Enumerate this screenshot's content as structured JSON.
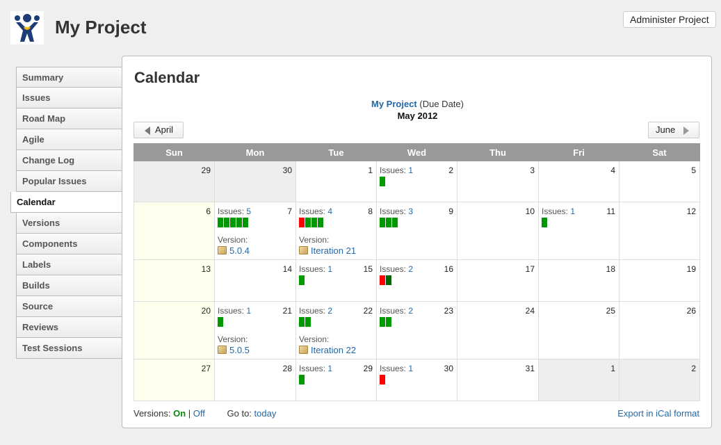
{
  "header": {
    "title": "My Project",
    "logo_icon": "atlassian-logo",
    "admin_button": "Administer Project"
  },
  "sidebar": {
    "items": [
      {
        "label": "Summary"
      },
      {
        "label": "Issues"
      },
      {
        "label": "Road Map"
      },
      {
        "label": "Agile"
      },
      {
        "label": "Change Log"
      },
      {
        "label": "Popular Issues"
      },
      {
        "label": "Calendar",
        "active": true
      },
      {
        "label": "Versions"
      },
      {
        "label": "Components"
      },
      {
        "label": "Labels"
      },
      {
        "label": "Builds"
      },
      {
        "label": "Source"
      },
      {
        "label": "Reviews"
      },
      {
        "label": "Test Sessions"
      }
    ]
  },
  "calendar": {
    "title": "Calendar",
    "project_link": "My Project",
    "field": "(Due Date)",
    "month": "May 2012",
    "prev": "April",
    "next": "June",
    "weekdays": [
      "Sun",
      "Mon",
      "Tue",
      "Wed",
      "Thu",
      "Fri",
      "Sat"
    ],
    "issues_label": "Issues: ",
    "version_label": "Version:",
    "colors": {
      "resolved": "#009900",
      "overdue": "#ff0000",
      "dark_green": "#006400"
    },
    "weeks": [
      [
        {
          "day": "29",
          "other": true
        },
        {
          "day": "30",
          "other": true
        },
        {
          "day": "1"
        },
        {
          "day": "2",
          "issues": "1",
          "bars": [
            "g"
          ]
        },
        {
          "day": "3"
        },
        {
          "day": "4"
        },
        {
          "day": "5"
        }
      ],
      [
        {
          "day": "6"
        },
        {
          "day": "7",
          "issues": "5",
          "bars": [
            "g",
            "g",
            "g",
            "g",
            "g"
          ],
          "version": "5.0.4"
        },
        {
          "day": "8",
          "issues": "4",
          "bars": [
            "r",
            "g",
            "g",
            "g"
          ],
          "version": "Iteration 21"
        },
        {
          "day": "9",
          "issues": "3",
          "bars": [
            "g",
            "g",
            "g"
          ]
        },
        {
          "day": "10"
        },
        {
          "day": "11",
          "issues": "1",
          "bars": [
            "g"
          ]
        },
        {
          "day": "12"
        }
      ],
      [
        {
          "day": "13"
        },
        {
          "day": "14"
        },
        {
          "day": "15",
          "issues": "1",
          "bars": [
            "g"
          ]
        },
        {
          "day": "16",
          "issues": "2",
          "bars": [
            "r",
            "d"
          ]
        },
        {
          "day": "17"
        },
        {
          "day": "18"
        },
        {
          "day": "19"
        }
      ],
      [
        {
          "day": "20"
        },
        {
          "day": "21",
          "issues": "1",
          "bars": [
            "g"
          ],
          "version": "5.0.5"
        },
        {
          "day": "22",
          "issues": "2",
          "bars": [
            "g",
            "g"
          ],
          "version": "Iteration 22"
        },
        {
          "day": "23",
          "issues": "2",
          "bars": [
            "g",
            "g"
          ]
        },
        {
          "day": "24"
        },
        {
          "day": "25"
        },
        {
          "day": "26"
        }
      ],
      [
        {
          "day": "27"
        },
        {
          "day": "28"
        },
        {
          "day": "29",
          "issues": "1",
          "bars": [
            "g"
          ]
        },
        {
          "day": "30",
          "issues": "1",
          "bars": [
            "r"
          ]
        },
        {
          "day": "31"
        },
        {
          "day": "1",
          "other": true
        },
        {
          "day": "2",
          "other": true
        }
      ]
    ]
  },
  "footer": {
    "versions_label": "Versions: ",
    "on": "On",
    "sep": " | ",
    "off": "Off",
    "goto_label": "Go to: ",
    "today": "today",
    "ical": "Export in iCal format"
  }
}
